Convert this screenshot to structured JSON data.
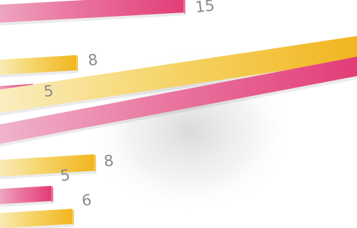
{
  "chart_data": {
    "type": "bar",
    "orientation": "horizontal",
    "perspective": "tilted",
    "bars": [
      {
        "value": 15,
        "label": "15",
        "color": "#e8457e"
      },
      {
        "value": 8,
        "label": "8",
        "color": "#f4c12f"
      },
      {
        "value": 5,
        "label": "5",
        "color": "#e8457e"
      },
      {
        "value": null,
        "label": "",
        "color": "#f4c12f"
      },
      {
        "value": null,
        "label": "",
        "color": "#e8457e"
      },
      {
        "value": 8,
        "label": "8",
        "color": "#f4c12f"
      },
      {
        "value": 5,
        "label": "5",
        "color": "#e8457e"
      },
      {
        "value": 6,
        "label": "6",
        "color": "#f4c12f"
      }
    ],
    "colors": {
      "gold": "#f4c12f",
      "pink": "#e8457e",
      "label": "#8a8a8a"
    }
  }
}
